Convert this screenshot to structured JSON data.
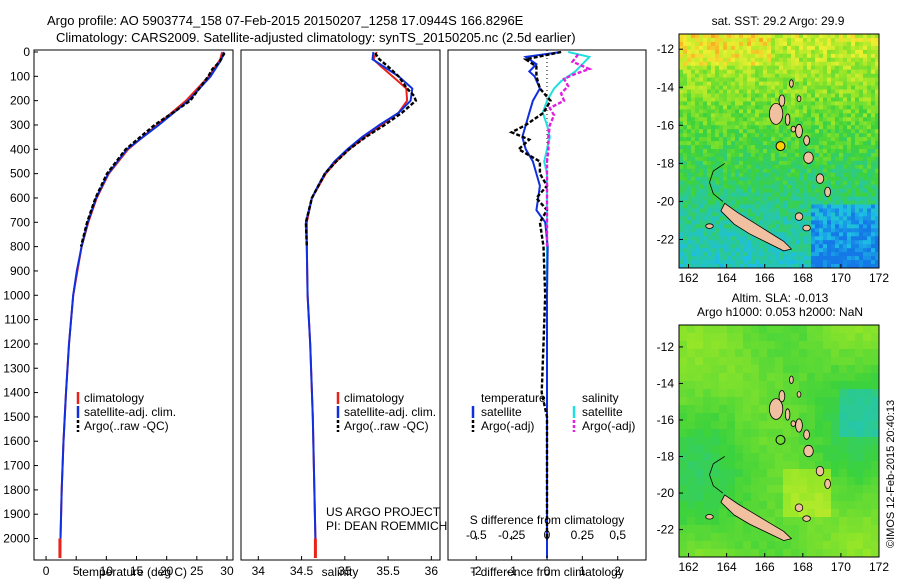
{
  "figure": {
    "title_line1": "Argo profile: AO 5903774_158 07-Feb-2015 20150207_1258 17.0944S 166.8296E",
    "title_line2": "Climatology: CARS2009. Satellite-adjusted climatology: synTS_20150205.nc (2.5d earlier)",
    "project_line1": "US ARGO PROJECT",
    "project_line2": "PI: DEAN ROEMMICH",
    "credit": "©IMOS 12-Feb-2015 20:40:13"
  },
  "colors": {
    "climatology": "#e8231b",
    "satellite": "#1030e0",
    "argo": "#000000",
    "salinity_sat": "#20e0e0",
    "salinity_argo": "#e020e0",
    "land": "#f0c0a0",
    "marker": "#ffd000"
  },
  "chart_data": [
    {
      "id": "temperature",
      "type": "line",
      "xlabel": "temperature (deg C)",
      "ylabel": "",
      "xlim": [
        -2,
        31
      ],
      "ylim": [
        2080,
        0
      ],
      "xticks": [
        "0",
        "5",
        "10",
        "15",
        "20",
        "25",
        "30"
      ],
      "xtick_values": [
        0,
        5,
        10,
        15,
        20,
        25,
        30
      ],
      "yticks": [
        "0",
        "100",
        "200",
        "300",
        "400",
        "500",
        "600",
        "700",
        "800",
        "900",
        "1000",
        "1100",
        "1200",
        "1300",
        "1400",
        "1500",
        "1600",
        "1700",
        "1800",
        "1900",
        "2000"
      ],
      "ytick_values": [
        0,
        100,
        200,
        300,
        400,
        500,
        600,
        700,
        800,
        900,
        1000,
        1100,
        1200,
        1300,
        1400,
        1500,
        1600,
        1700,
        1800,
        1900,
        2000
      ],
      "legend": [
        "climatology",
        "satellite-adj. clim.",
        "Argo(..raw -QC)"
      ],
      "series": [
        {
          "name": "climatology",
          "depth": [
            0,
            30,
            100,
            200,
            300,
            400,
            500,
            600,
            700,
            800,
            900,
            1000,
            1200,
            1400,
            1600,
            1800,
            2000,
            2080
          ],
          "values": [
            29.2,
            28.9,
            27.0,
            23.2,
            18.4,
            13.6,
            10.4,
            8.4,
            7.0,
            5.9,
            5.2,
            4.5,
            3.8,
            3.3,
            2.9,
            2.6,
            2.4,
            2.3
          ]
        },
        {
          "name": "satellite-adj. clim.",
          "depth": [
            0,
            30,
            100,
            200,
            300,
            400,
            500,
            600,
            700,
            800,
            900,
            1000,
            1200,
            1400,
            1600,
            1800,
            2000,
            2080
          ],
          "values": [
            29.5,
            29.1,
            27.3,
            23.6,
            18.7,
            13.4,
            10.3,
            8.3,
            6.9,
            5.9,
            5.1,
            4.5,
            3.8,
            3.3,
            2.9,
            2.6,
            2.4,
            2.3
          ]
        },
        {
          "name": "Argo(..raw -QC)",
          "depth": [
            5,
            20,
            40,
            70,
            100,
            150,
            200,
            250,
            300,
            400,
            500,
            600,
            700,
            800
          ],
          "values": [
            29.6,
            29.2,
            28.8,
            27.6,
            26.9,
            25.4,
            23.9,
            21.0,
            18.0,
            13.2,
            10.1,
            8.2,
            6.8,
            5.8
          ]
        }
      ]
    },
    {
      "id": "salinity",
      "type": "line",
      "xlabel": "salinity",
      "ylabel": "",
      "xlim": [
        33.8,
        36.1
      ],
      "ylim": [
        2080,
        0
      ],
      "xticks": [
        "34",
        "34.5",
        "35",
        "35.5",
        "36"
      ],
      "xtick_values": [
        34,
        34.5,
        35,
        35.5,
        36
      ],
      "legend": [
        "climatology",
        "satellite-adj. clim.",
        "Argo(..raw -QC)"
      ],
      "series": [
        {
          "name": "climatology",
          "depth": [
            0,
            30,
            60,
            100,
            150,
            200,
            250,
            300,
            350,
            400,
            450,
            500,
            550,
            600,
            700,
            800,
            1000,
            1200,
            1500,
            2000,
            2080
          ],
          "values": [
            35.37,
            35.33,
            35.42,
            35.55,
            35.71,
            35.72,
            35.62,
            35.43,
            35.23,
            35.05,
            34.9,
            34.78,
            34.7,
            34.62,
            34.56,
            34.56,
            34.57,
            34.6,
            34.63,
            34.66,
            34.66
          ]
        },
        {
          "name": "satellite-adj. clim.",
          "depth": [
            0,
            30,
            60,
            100,
            150,
            200,
            250,
            300,
            350,
            400,
            450,
            500,
            550,
            600,
            700,
            800,
            1000,
            1200,
            1500,
            2000,
            2080
          ],
          "values": [
            35.33,
            35.32,
            35.45,
            35.62,
            35.78,
            35.76,
            35.62,
            35.4,
            35.2,
            35.03,
            34.88,
            34.77,
            34.69,
            34.62,
            34.55,
            34.56,
            34.57,
            34.6,
            34.63,
            34.66,
            34.66
          ]
        },
        {
          "name": "Argo(..raw -QC)",
          "depth": [
            5,
            30,
            60,
            100,
            150,
            180,
            200,
            250,
            300,
            350,
            400,
            450,
            500,
            600,
            700,
            800
          ],
          "values": [
            35.35,
            35.4,
            35.5,
            35.62,
            35.72,
            35.8,
            35.82,
            35.66,
            35.46,
            35.24,
            35.05,
            34.9,
            34.77,
            34.62,
            34.55,
            34.56
          ]
        }
      ]
    },
    {
      "id": "differences",
      "type": "line",
      "xlabel": "T difference from climatology",
      "x2label": "S difference from climatology",
      "xlim": [
        -2.8,
        2.8
      ],
      "x2lim": [
        -0.7,
        0.7
      ],
      "ylim": [
        2080,
        0
      ],
      "xticks": [
        "-2",
        "-1",
        "0",
        "1",
        "2"
      ],
      "xtick_values": [
        -2,
        -1,
        0,
        1,
        2
      ],
      "x2ticks": [
        "-0.5",
        "-0.25",
        "0",
        "0.25",
        "0.5"
      ],
      "x2tick_values": [
        -0.5,
        -0.25,
        0,
        0.25,
        0.5
      ],
      "legend_temperature": {
        "title": "temperature",
        "items": [
          "satellite",
          "Argo(-adj)"
        ]
      },
      "legend_salinity": {
        "title": "salinity",
        "items": [
          "satellite",
          "Argo(-adj)"
        ]
      },
      "series": [
        {
          "name": "temperature satellite",
          "axis": "T",
          "depth": [
            0,
            20,
            50,
            80,
            100,
            150,
            200,
            250,
            300,
            350,
            400,
            450,
            500,
            550,
            600,
            650,
            700,
            800,
            1000,
            1500,
            2080
          ],
          "values": [
            0.4,
            -0.6,
            -0.3,
            -0.5,
            -0.35,
            -0.2,
            -0.4,
            -0.5,
            -0.6,
            -0.7,
            -0.6,
            -0.4,
            -0.3,
            -0.2,
            -0.25,
            -0.3,
            -0.05,
            0.02,
            0,
            0,
            0
          ]
        },
        {
          "name": "temperature Argo(-adj)",
          "axis": "T",
          "depth": [
            0,
            30,
            60,
            100,
            150,
            200,
            250,
            300,
            330,
            360,
            400,
            450,
            500,
            550,
            600,
            650,
            700,
            800,
            1000,
            1200,
            1400,
            1500,
            2000
          ],
          "values": [
            0.4,
            -0.6,
            -0.3,
            -0.3,
            -0.2,
            0.1,
            -0.1,
            -0.6,
            -1.0,
            -0.5,
            -0.8,
            -0.2,
            -0.2,
            0,
            -0.3,
            0,
            -0.2,
            -0.1,
            -0.05,
            -0.1,
            -0.15,
            0,
            0
          ]
        },
        {
          "name": "salinity satellite",
          "axis": "S",
          "depth": [
            0,
            20,
            50,
            80,
            120,
            150,
            200,
            250,
            300,
            350,
            400,
            450,
            500,
            600,
            700,
            800,
            1000,
            1500,
            2000
          ],
          "values": [
            0.15,
            0.3,
            0.25,
            0.2,
            0.1,
            0.05,
            0.0,
            -0.03,
            0.0,
            0.02,
            0.0,
            -0.02,
            0.0,
            0.0,
            0.0,
            0.0,
            0.0,
            0.0,
            0.0
          ]
        },
        {
          "name": "salinity Argo(-adj)",
          "axis": "S",
          "depth": [
            10,
            40,
            70,
            90,
            110,
            140,
            170,
            200,
            230,
            260,
            300,
            350,
            400,
            450,
            500,
            600,
            700,
            800
          ],
          "values": [
            0.22,
            0.18,
            0.3,
            0.2,
            0.12,
            0.15,
            0.1,
            0.12,
            0.02,
            0.05,
            0.02,
            0.01,
            0.01,
            0.0,
            0.0,
            0.0,
            0.0,
            0.0
          ]
        }
      ]
    },
    {
      "id": "sst_map",
      "type": "heatmap",
      "title": "sat. SST: 29.2 Argo: 29.9",
      "xlim": [
        161.5,
        172
      ],
      "ylim": [
        -23.5,
        -11.2
      ],
      "xticks": [
        "162",
        "164",
        "166",
        "168",
        "170",
        "172"
      ],
      "xtick_values": [
        162,
        164,
        166,
        168,
        170,
        172
      ],
      "yticks": [
        "-12",
        "-14",
        "-16",
        "-18",
        "-20",
        "-22"
      ],
      "ytick_values": [
        -12,
        -14,
        -16,
        -18,
        -20,
        -22
      ],
      "argo_position": {
        "lon": 166.83,
        "lat": -17.09
      },
      "sst_satellite": 29.2,
      "sst_argo": 29.9
    },
    {
      "id": "sla_map",
      "type": "heatmap",
      "title_line1": "Altim. SLA: -0.013",
      "title_line2": "Argo h1000: 0.053 h2000: NaN",
      "xlim": [
        161.5,
        172
      ],
      "ylim": [
        -23.5,
        -10.8
      ],
      "xticks": [
        "162",
        "164",
        "166",
        "168",
        "170",
        "172"
      ],
      "xtick_values": [
        162,
        164,
        166,
        168,
        170,
        172
      ],
      "yticks": [
        "-12",
        "-14",
        "-16",
        "-18",
        "-20",
        "-22"
      ],
      "ytick_values": [
        -12,
        -14,
        -16,
        -18,
        -20,
        -22
      ],
      "argo_position": {
        "lon": 166.83,
        "lat": -17.09
      },
      "sla": -0.013,
      "h1000": 0.053,
      "h2000": "NaN"
    }
  ]
}
